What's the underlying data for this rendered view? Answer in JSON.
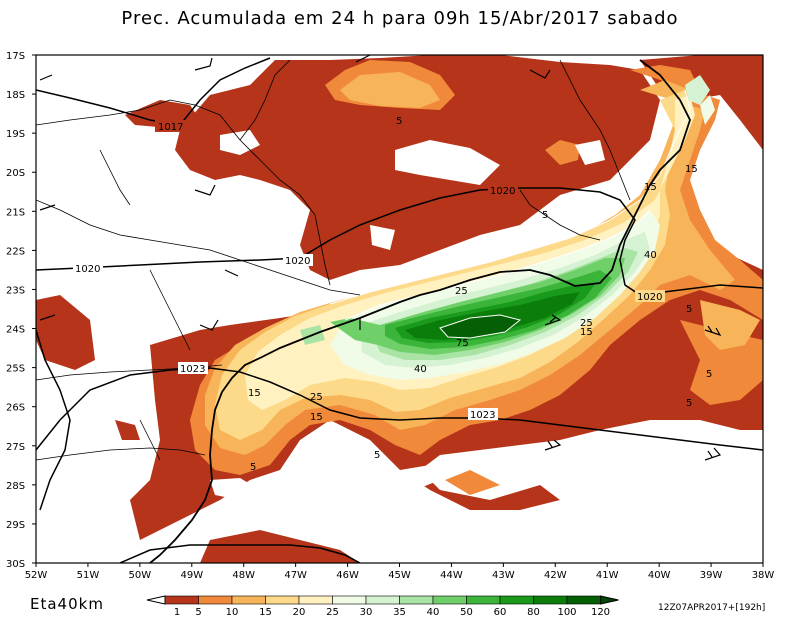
{
  "title": "Prec. Acumulada em 24 h para 09h 15/Abr/2017 sabado",
  "model": "Eta40km",
  "run": "12Z07APR2017+[192h]",
  "lat_labels": [
    "17S",
    "18S",
    "19S",
    "20S",
    "21S",
    "22S",
    "23S",
    "24S",
    "25S",
    "26S",
    "27S",
    "28S",
    "29S",
    "30S"
  ],
  "lon_labels": [
    "52W",
    "51W",
    "50W",
    "49W",
    "48W",
    "47W",
    "46W",
    "45W",
    "44W",
    "43W",
    "42W",
    "41W",
    "40W",
    "39W",
    "38W"
  ],
  "isobar_labels": [
    "1017",
    "1020",
    "1020",
    "1020",
    "1020",
    "1023",
    "1023"
  ],
  "precip_labels": [
    "5",
    "15",
    "5",
    "15",
    "40",
    "25",
    "25",
    "15",
    "75",
    "40",
    "5",
    "15",
    "25",
    "15",
    "5",
    "5",
    "5",
    "5"
  ],
  "colorbar": {
    "ticks": [
      "1",
      "5",
      "10",
      "15",
      "20",
      "25",
      "30",
      "35",
      "40",
      "50",
      "60",
      "80",
      "100",
      "120"
    ],
    "colors": [
      "#b5341a",
      "#f08a3a",
      "#f8b458",
      "#fdd98a",
      "#fff2c0",
      "#f0fbe8",
      "#d5f2d2",
      "#a9e4a4",
      "#6fd06a",
      "#3ab53a",
      "#1a9a1a",
      "#0b7d0b",
      "#055f05",
      "#034503"
    ]
  },
  "colors": {
    "dry": "#b5341a",
    "orange": "#f08a3a",
    "light_orange": "#f8b458",
    "yellow": "#fdd98a",
    "cream": "#fff2c0",
    "pale_green": "#f0fbe8",
    "green_dark": "#055f05"
  }
}
